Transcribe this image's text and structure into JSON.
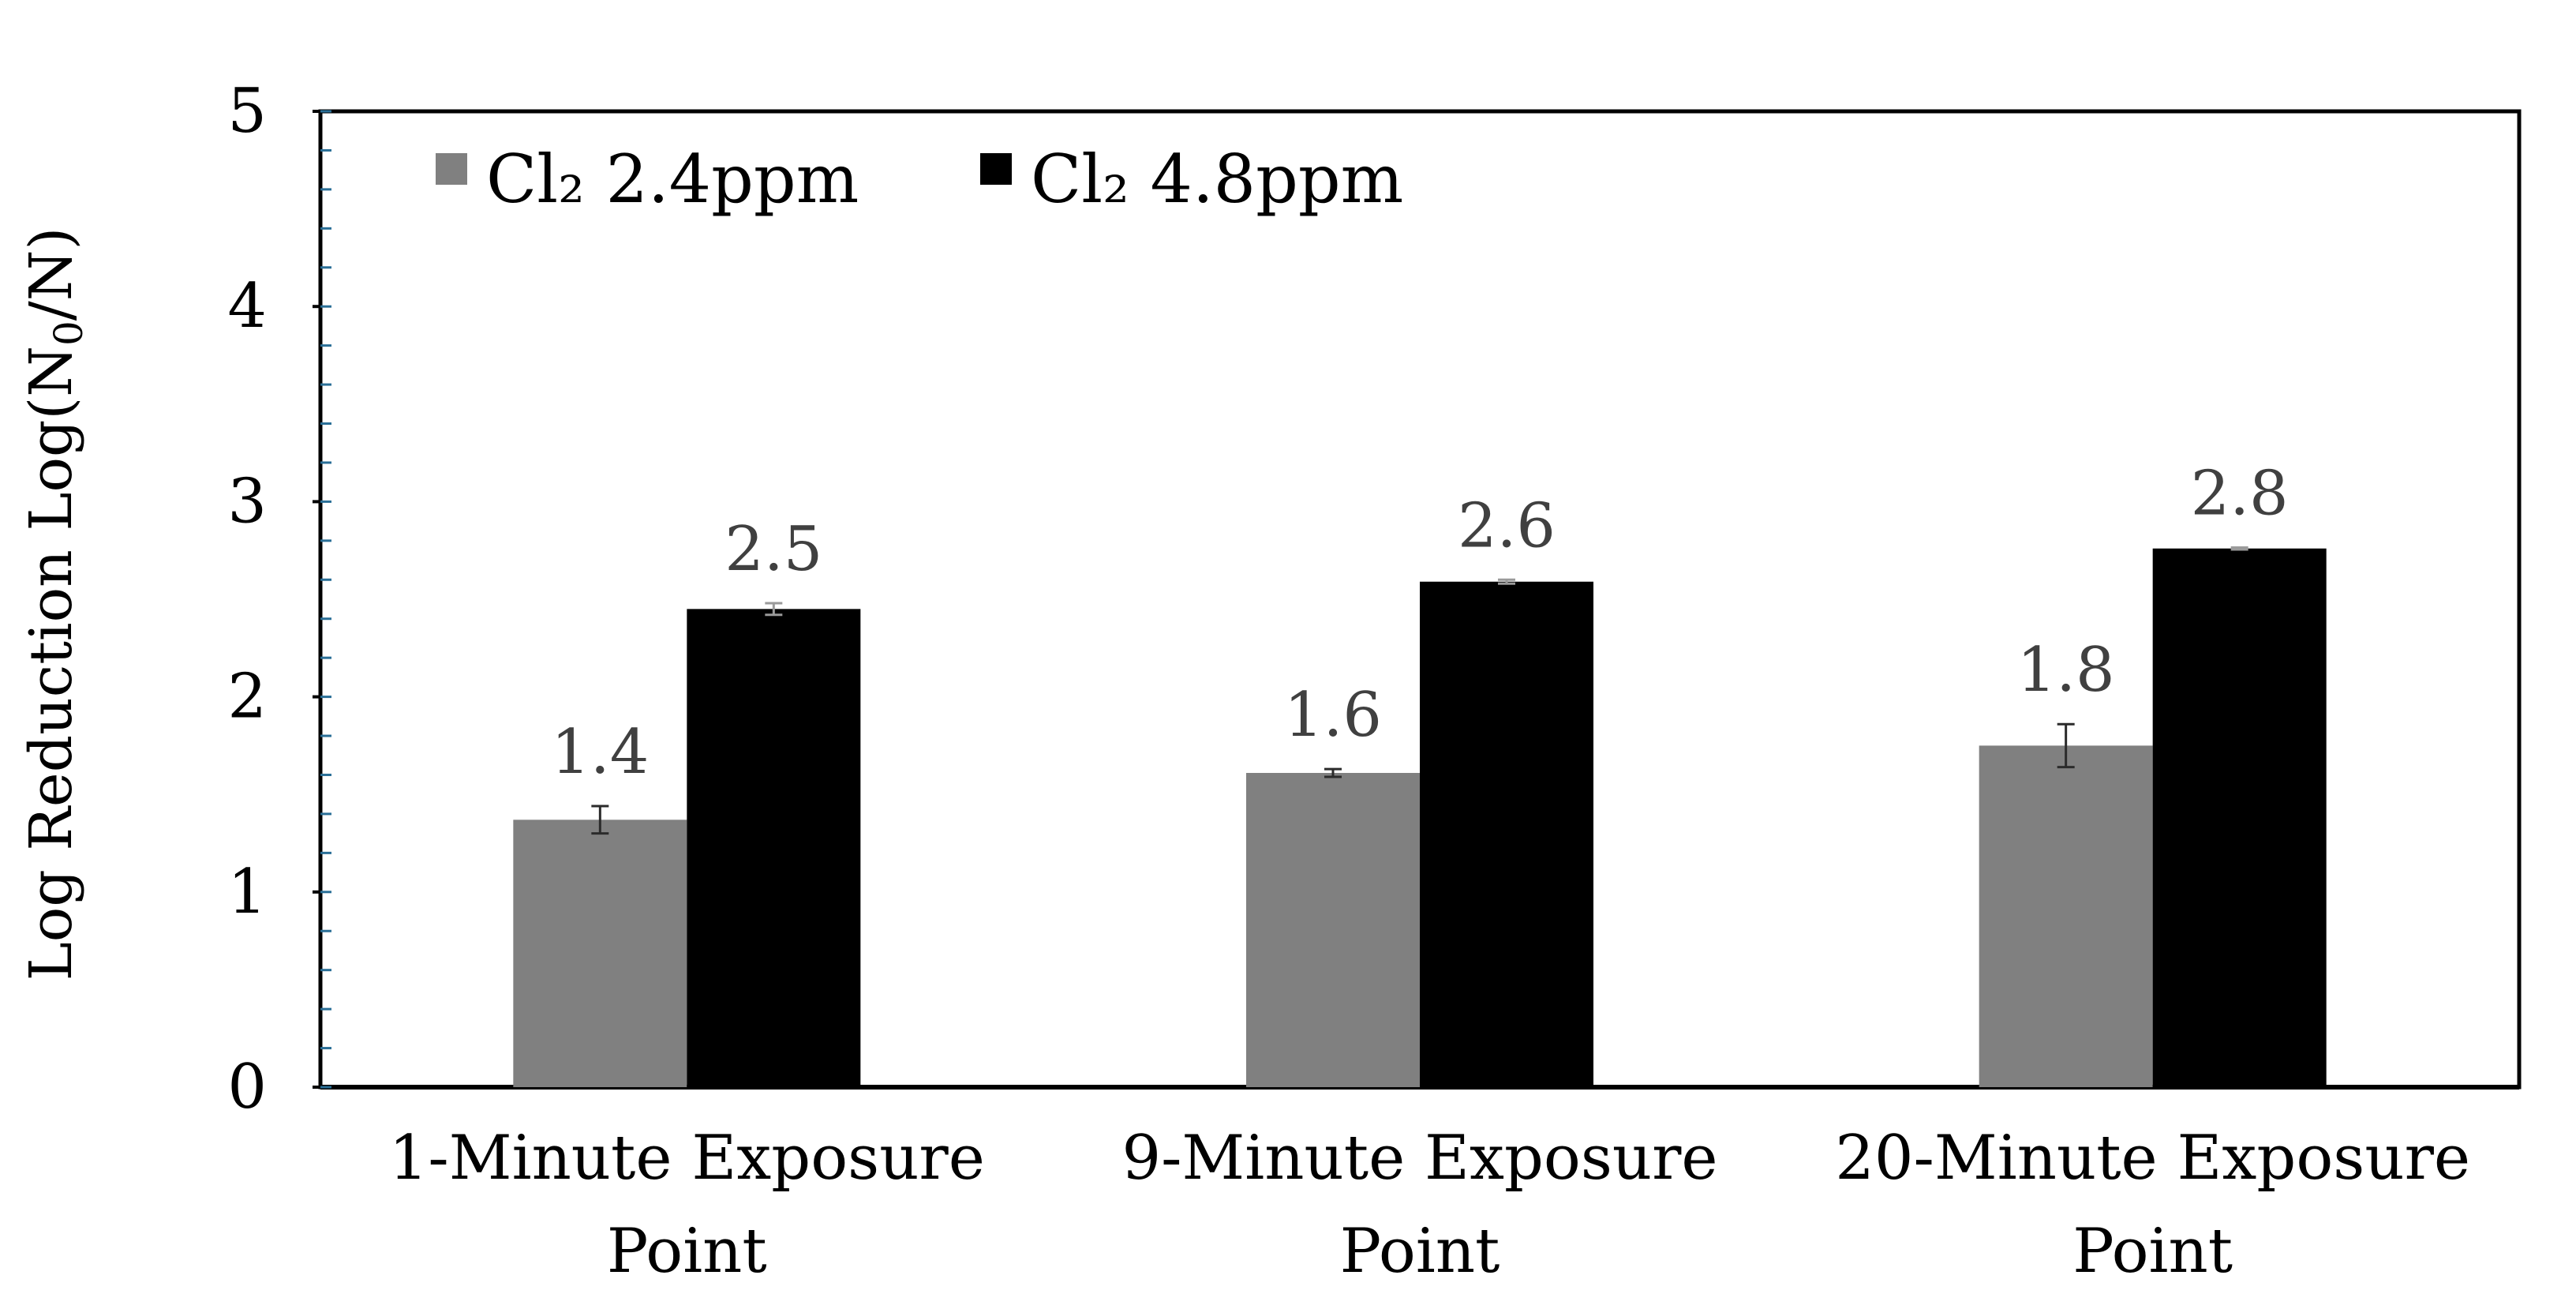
{
  "chart_data": {
    "type": "bar",
    "ylabel": "Log Reduction Log(N",
    "ylabel_subscript": "0",
    "ylabel_suffix": "/N)",
    "ylim": [
      0,
      5
    ],
    "y_ticks": [
      "0",
      "1",
      "2",
      "3",
      "4",
      "5"
    ],
    "minor_ticks_per_major": 5,
    "categories": [
      [
        "1-Minute Exposure",
        "Point"
      ],
      [
        "9-Minute Exposure",
        "Point"
      ],
      [
        "20-Minute Exposure",
        "Point"
      ]
    ],
    "series": [
      {
        "name": "Cl₂ 2.4ppm",
        "color": "#808080",
        "values": [
          1.37,
          1.61,
          1.75
        ],
        "errors": [
          0.07,
          0.02,
          0.11
        ],
        "data_labels": [
          "1.4",
          "1.6",
          "1.8"
        ]
      },
      {
        "name": "Cl₂ 4.8ppm",
        "color": "#000000",
        "values": [
          2.45,
          2.59,
          2.76
        ],
        "errors": [
          0.03,
          0.01,
          0.005
        ],
        "data_labels": [
          "2.5",
          "2.6",
          "2.8"
        ]
      }
    ],
    "legend_position": "top-left",
    "grid": false
  }
}
